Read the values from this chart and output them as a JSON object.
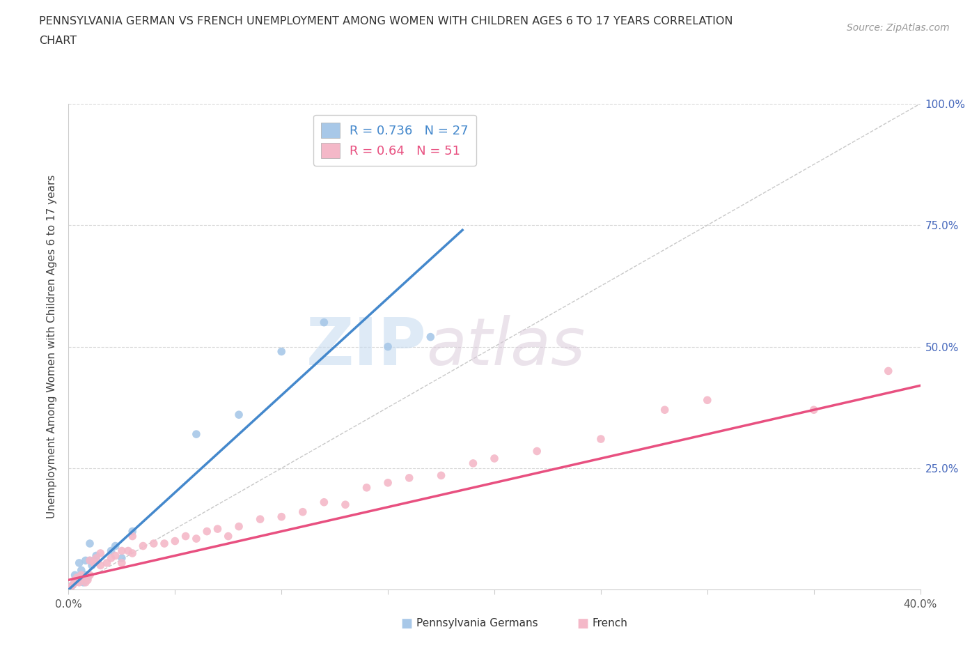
{
  "title_line1": "PENNSYLVANIA GERMAN VS FRENCH UNEMPLOYMENT AMONG WOMEN WITH CHILDREN AGES 6 TO 17 YEARS CORRELATION",
  "title_line2": "CHART",
  "source": "Source: ZipAtlas.com",
  "xlabel": "",
  "ylabel": "Unemployment Among Women with Children Ages 6 to 17 years",
  "xlim": [
    0.0,
    0.4
  ],
  "ylim": [
    0.0,
    1.0
  ],
  "xticks": [
    0.0,
    0.05,
    0.1,
    0.15,
    0.2,
    0.25,
    0.3,
    0.35,
    0.4
  ],
  "yticks": [
    0.0,
    0.25,
    0.5,
    0.75,
    1.0
  ],
  "german_R": 0.736,
  "german_N": 27,
  "french_R": 0.64,
  "french_N": 51,
  "german_color": "#a8c8e8",
  "french_color": "#f4b8c8",
  "german_line_color": "#4488cc",
  "french_line_color": "#e85080",
  "ref_line_color": "#c8c8c8",
  "background_color": "#ffffff",
  "grid_color": "#d8d8d8",
  "watermark_zip": "ZIP",
  "watermark_atlas": "atlas",
  "german_x": [
    0.001,
    0.002,
    0.003,
    0.003,
    0.004,
    0.005,
    0.005,
    0.006,
    0.007,
    0.008,
    0.008,
    0.009,
    0.01,
    0.01,
    0.011,
    0.012,
    0.013,
    0.02,
    0.022,
    0.025,
    0.03,
    0.06,
    0.08,
    0.1,
    0.12,
    0.15,
    0.17
  ],
  "german_y": [
    0.005,
    0.01,
    0.015,
    0.03,
    0.02,
    0.025,
    0.055,
    0.04,
    0.015,
    0.03,
    0.06,
    0.025,
    0.06,
    0.095,
    0.05,
    0.06,
    0.07,
    0.08,
    0.09,
    0.065,
    0.12,
    0.32,
    0.36,
    0.49,
    0.55,
    0.5,
    0.52
  ],
  "french_x": [
    0.001,
    0.002,
    0.003,
    0.003,
    0.004,
    0.005,
    0.006,
    0.007,
    0.008,
    0.009,
    0.01,
    0.01,
    0.012,
    0.013,
    0.015,
    0.015,
    0.018,
    0.02,
    0.022,
    0.025,
    0.025,
    0.028,
    0.03,
    0.03,
    0.035,
    0.04,
    0.045,
    0.05,
    0.055,
    0.06,
    0.065,
    0.07,
    0.075,
    0.08,
    0.09,
    0.1,
    0.11,
    0.12,
    0.13,
    0.14,
    0.15,
    0.16,
    0.175,
    0.19,
    0.2,
    0.22,
    0.25,
    0.28,
    0.3,
    0.35,
    0.385
  ],
  "french_y": [
    0.005,
    0.01,
    0.015,
    0.02,
    0.025,
    0.015,
    0.03,
    0.025,
    0.015,
    0.02,
    0.03,
    0.06,
    0.055,
    0.065,
    0.05,
    0.075,
    0.055,
    0.065,
    0.07,
    0.055,
    0.08,
    0.08,
    0.075,
    0.11,
    0.09,
    0.095,
    0.095,
    0.1,
    0.11,
    0.105,
    0.12,
    0.125,
    0.11,
    0.13,
    0.145,
    0.15,
    0.16,
    0.18,
    0.175,
    0.21,
    0.22,
    0.23,
    0.235,
    0.26,
    0.27,
    0.285,
    0.31,
    0.37,
    0.39,
    0.37,
    0.45
  ],
  "german_line_x0": 0.0,
  "german_line_y0": 0.0,
  "german_line_x1": 0.185,
  "german_line_y1": 0.74,
  "french_line_x0": 0.0,
  "french_line_y0": 0.02,
  "french_line_x1": 0.4,
  "french_line_y1": 0.42
}
